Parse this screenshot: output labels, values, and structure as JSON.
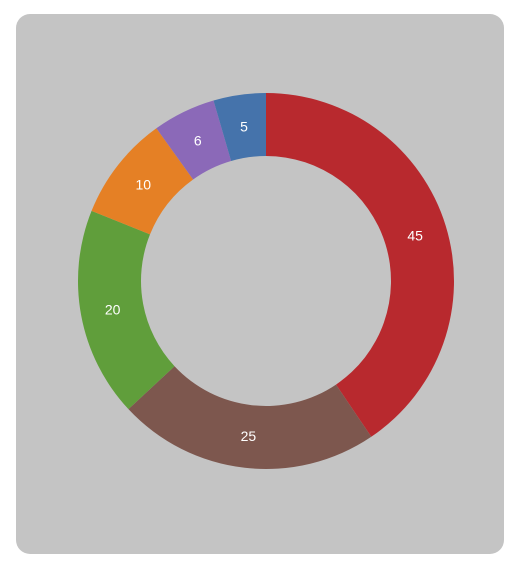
{
  "chart_data": {
    "type": "pie",
    "style": "donut",
    "title": "",
    "labels_shown": "values",
    "slices": [
      {
        "value": 45,
        "label": "45",
        "color": "#b8292e"
      },
      {
        "value": 25,
        "label": "25",
        "color": "#7d574e"
      },
      {
        "value": 20,
        "label": "20",
        "color": "#609e3b"
      },
      {
        "value": 10,
        "label": "10",
        "color": "#e58025"
      },
      {
        "value": 6,
        "label": "6",
        "color": "#8b69b8"
      },
      {
        "value": 5,
        "label": "5",
        "color": "#4573ab"
      }
    ],
    "start": "top",
    "direction": "clockwise"
  },
  "colors": {
    "panel_background": "#c4c4c4"
  }
}
